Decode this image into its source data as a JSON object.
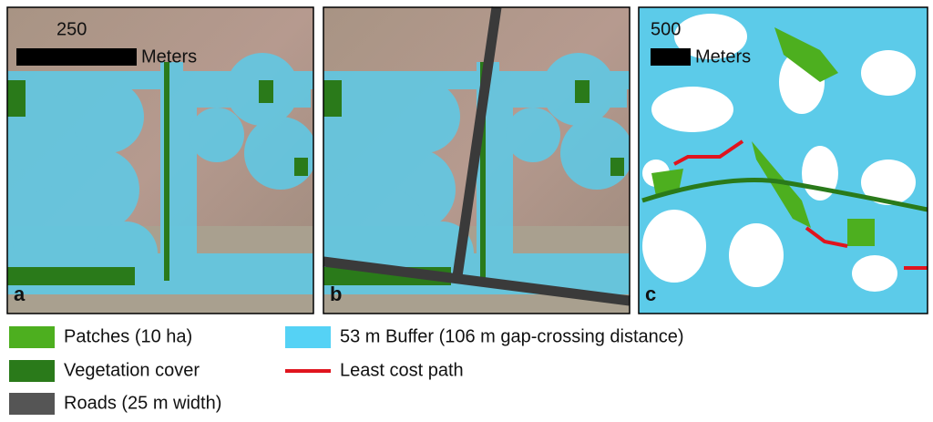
{
  "panels": [
    {
      "label": "a",
      "scale_value": "250",
      "scale_unit": "Meters"
    },
    {
      "label": "b"
    },
    {
      "label": "c",
      "scale_value": "500",
      "scale_unit": "Meters"
    }
  ],
  "legend": [
    {
      "label": "Patches (10 ha)",
      "color": "#4daf1f"
    },
    {
      "label": "Vegetation cover",
      "color": "#2a7a1a"
    },
    {
      "label": "Roads (25 m width)",
      "color": "#555555"
    },
    {
      "label": "53 m Buffer (106 m gap-crossing distance)",
      "color": "#55d2f5"
    },
    {
      "label": "Least cost path",
      "color": "#e0141e"
    }
  ]
}
